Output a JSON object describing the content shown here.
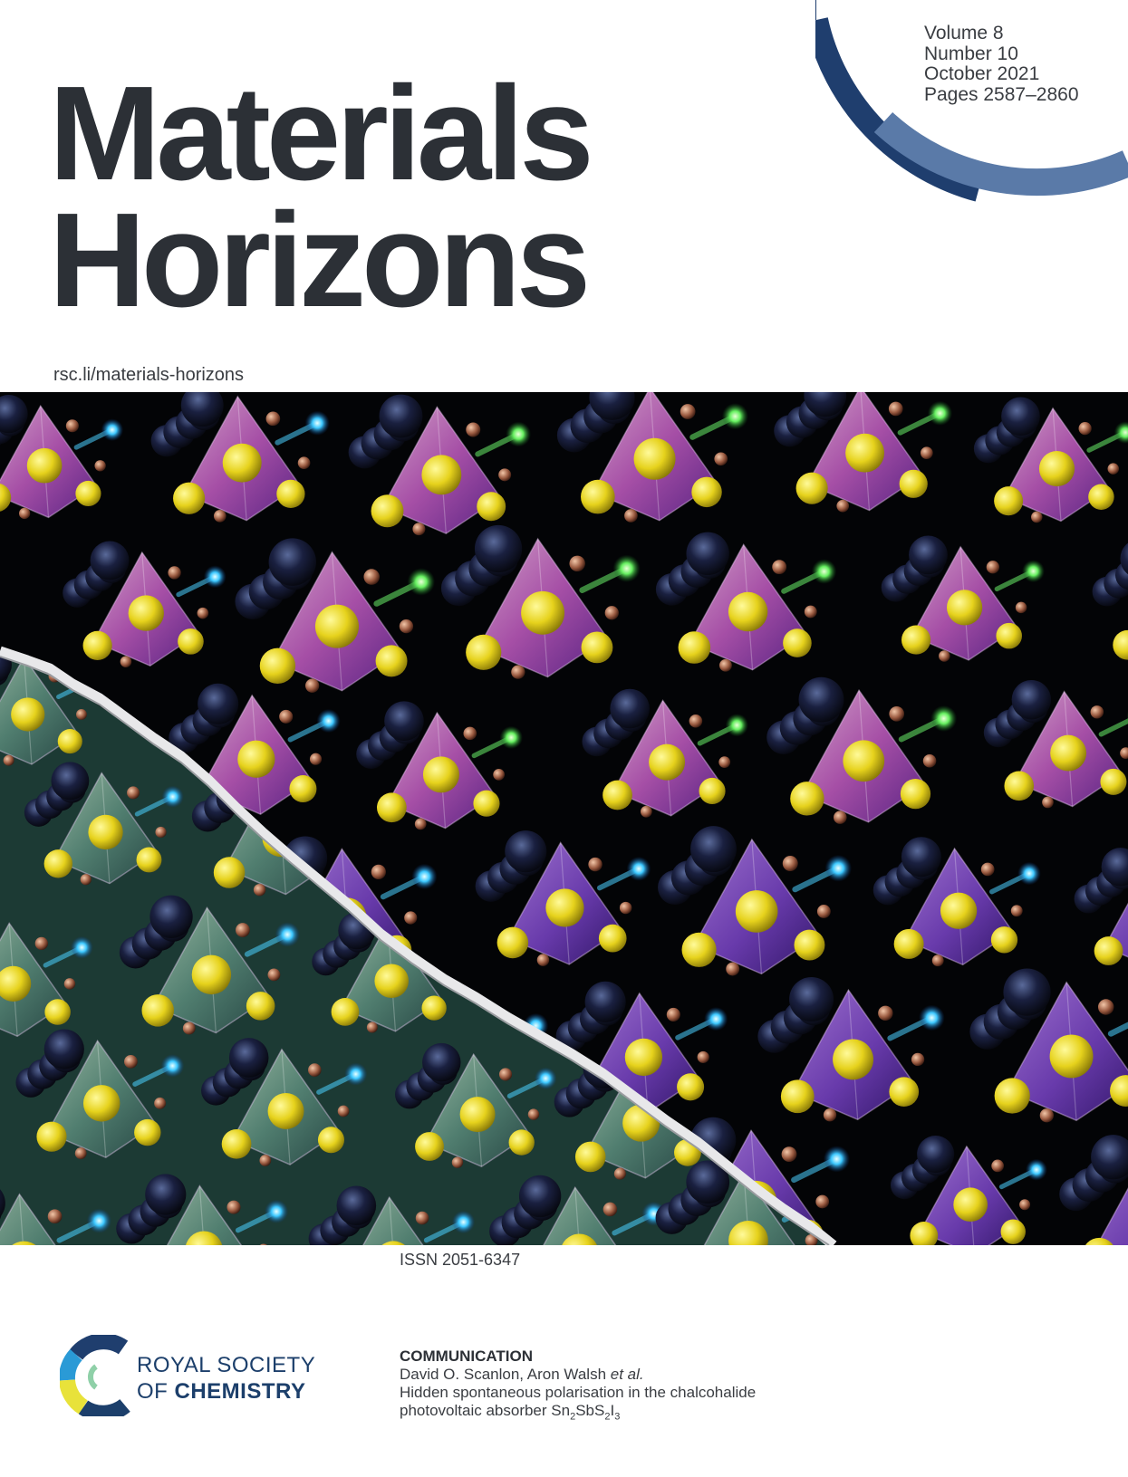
{
  "journal": {
    "title_line1": "Materials",
    "title_line2": "Horizons",
    "url": "rsc.li/materials-horizons"
  },
  "issue": {
    "volume": "Volume 8",
    "number": "Number 10",
    "date": "October 2021",
    "pages": "Pages 2587–2860"
  },
  "issn": "ISSN 2051-6347",
  "publisher": {
    "line1": "ROYAL SOCIETY",
    "line2_prefix": "OF ",
    "line2_bold": "CHEMISTRY"
  },
  "article": {
    "type": "COMMUNICATION",
    "authors_main": "David O. Scanlon, Aron Walsh ",
    "authors_etal": "et al.",
    "title_line1": "Hidden spontaneous polarisation in the chalcohalide",
    "title_line2_prefix": "photovoltaic absorber Sn",
    "formula_sub1": "2",
    "formula_mid1": "SbS",
    "formula_sub2": "2",
    "formula_mid2": "I",
    "formula_sub3": "3"
  },
  "colors": {
    "title": "#2c3036",
    "arc_dark": "#1f3e6e",
    "arc_light": "#5a7aa8",
    "society_blue": "#1c3f6b"
  }
}
